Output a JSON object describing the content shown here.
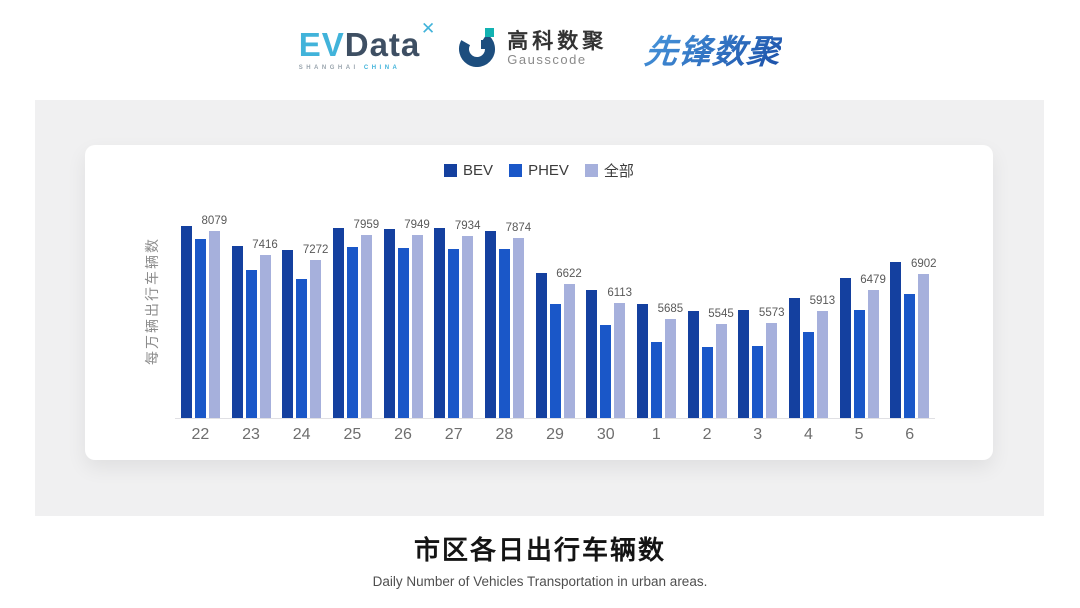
{
  "header": {
    "evdata": {
      "ev": "EV",
      "data": "Data",
      "sparkle": "✕",
      "sub_left": "SHANGHAI ",
      "sub_right": "CHINA"
    },
    "gausscode": {
      "cn": "高科数聚",
      "en": "Gausscode"
    },
    "xianfeng": {
      "text": "先锋数聚"
    }
  },
  "chart_data": {
    "type": "bar",
    "title": "市区各日出行车辆数",
    "subtitle": "Daily Number of Vehicles Transportation in urban areas.",
    "ylabel": "每万辆出行车辆数",
    "legend_position": "top",
    "grid": false,
    "ylim": [
      3000,
      8500
    ],
    "categories": [
      "22",
      "23",
      "24",
      "25",
      "26",
      "27",
      "28",
      "29",
      "30",
      "1",
      "2",
      "3",
      "4",
      "5",
      "6"
    ],
    "series": [
      {
        "name": "BEV",
        "key": "bev",
        "color": "#14409f",
        "values": [
          8210,
          7660,
          7550,
          8160,
          8130,
          8140,
          8070,
          6940,
          6460,
          6080,
          5900,
          5940,
          6260,
          6800,
          7230
        ]
      },
      {
        "name": "PHEV",
        "key": "phev",
        "color": "#1a57c8",
        "values": [
          7840,
          7000,
          6780,
          7640,
          7610,
          7590,
          7570,
          6100,
          5530,
          5060,
          4920,
          4950,
          5330,
          5930,
          6370
        ]
      },
      {
        "name": "全部",
        "key": "all",
        "color": "#a6b0dc",
        "values": [
          8079,
          7416,
          7272,
          7959,
          7949,
          7934,
          7874,
          6622,
          6113,
          5685,
          5545,
          5573,
          5913,
          6479,
          6902
        ]
      }
    ],
    "data_labels": [
      8079,
      7416,
      7272,
      7959,
      7949,
      7934,
      7874,
      6622,
      6113,
      5685,
      5545,
      5573,
      5913,
      6479,
      6902
    ],
    "note": "Visible numeric labels belong to the 全部 series; BEV/PHEV values estimated from bar heights; y-axis baseline ≈ 3000 (axis not drawn)."
  },
  "colors": {
    "panel_bg": "#f0f0f1",
    "card_bg": "#ffffff",
    "axis_line": "#e0e0e4",
    "tick_text": "#6e6e6e",
    "label_text": "#595959"
  },
  "footer": {
    "title": "市区各日出行车辆数",
    "subtitle": "Daily Number of Vehicles Transportation in urban areas."
  }
}
